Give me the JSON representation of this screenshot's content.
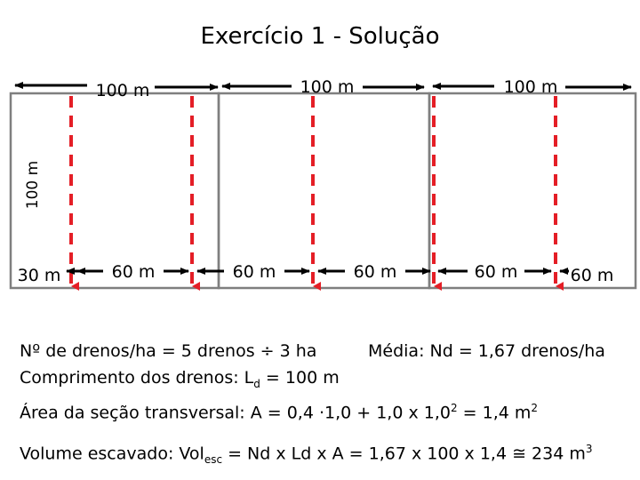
{
  "title": "Exercício 1 - Solução",
  "diagram": {
    "top_labels": [
      "100 m",
      "100 m",
      "100 m"
    ],
    "side_label": "100 m",
    "bottom_labels": [
      "30 m",
      "60 m",
      "60 m",
      "60 m",
      "60 m",
      "60 m"
    ],
    "colors": {
      "field_border": "#7F7F7F",
      "drain": "#E41E26",
      "arrow": "#000000"
    }
  },
  "notes": {
    "drains_per_ha": "Nº de drenos/ha = 5 drenos ÷ 3 ha",
    "average": "Média: Nd = 1,67 drenos/ha",
    "length_prefix": "Comprimento dos drenos: L",
    "length_sub": "d",
    "length_suffix": " = 100 m",
    "area_prefix": "Área da seção transversal: A = 0,4 ·1,0 + 1,0 x 1,0",
    "area_sup": "2",
    "area_mid": " =  1,4 m",
    "area_sup2": "2",
    "volume_prefix": "Volume escavado: Vol",
    "volume_sub": "esc",
    "volume_suffix": " = Nd x Ld x A  =  1,67 x 100 x 1,4  ≅  234 m",
    "volume_sup": "3"
  }
}
